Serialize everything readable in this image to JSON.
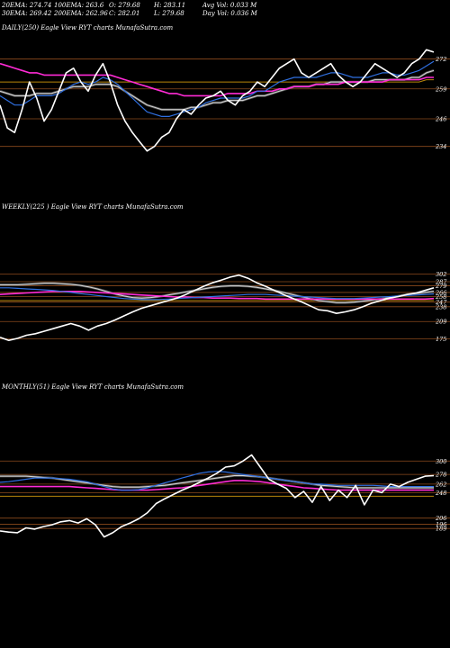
{
  "header": {
    "row1": [
      "20EMA: 274.74",
      "100EMA: 263.6",
      "O: 279.68",
      "H: 283.11",
      "Avg Vol: 0.033 M"
    ],
    "row2": [
      "30EMA: 269.42",
      "200EMA: 262.96",
      "C: 282.01",
      "L: 279.68",
      "Day Vol: 0.036 M"
    ]
  },
  "colors": {
    "background": "#000000",
    "price": "#ffffff",
    "ema_fast": "#2f6fe0",
    "ema_slow": "#ff2bd6",
    "ema_mid": "#d8d8d8",
    "ema_long": "#b8860b",
    "level_line": "#8b4a1c"
  },
  "chart_data": [
    {
      "type": "line",
      "title": "DAILY(250) Eagle   View  RYT charts MunafaSutra.com",
      "ylim": [
        228,
        282
      ],
      "yticks": [
        272,
        259,
        246,
        234
      ],
      "x": [
        0,
        1,
        2,
        3,
        4,
        5,
        6,
        7,
        8,
        9,
        10,
        11,
        12,
        13,
        14,
        15,
        16,
        17,
        18,
        19,
        20,
        21,
        22,
        23,
        24,
        25,
        26,
        27,
        28,
        29,
        30,
        31,
        32,
        33,
        34,
        35,
        36,
        37,
        38,
        39,
        40,
        41,
        42,
        43,
        44,
        45,
        46,
        47,
        48,
        49,
        50,
        51,
        52,
        53,
        54,
        55,
        56,
        57,
        58,
        59
      ],
      "series": [
        {
          "values": [
            252,
            242,
            240,
            250,
            262,
            255,
            245,
            250,
            258,
            266,
            268,
            262,
            258,
            265,
            270,
            262,
            252,
            245,
            240,
            236,
            232,
            234,
            238,
            240,
            246,
            250,
            248,
            252,
            255,
            256,
            258,
            254,
            252,
            256,
            258,
            262,
            260,
            264,
            268,
            270,
            272,
            266,
            264,
            266,
            268,
            270,
            265,
            262,
            260,
            262,
            266,
            270,
            268,
            266,
            264,
            266,
            270,
            272,
            276,
            275
          ]
        },
        {
          "values": [
            256,
            254,
            252,
            252,
            254,
            256,
            256,
            256,
            257,
            259,
            261,
            262,
            261,
            262,
            264,
            263,
            261,
            258,
            255,
            252,
            249,
            248,
            247,
            247,
            248,
            249,
            250,
            251,
            253,
            254,
            255,
            255,
            255,
            255,
            256,
            258,
            258,
            260,
            262,
            263,
            264,
            264,
            264,
            264,
            265,
            266,
            266,
            265,
            264,
            264,
            264,
            265,
            266,
            266,
            265,
            265,
            266,
            267,
            269,
            271
          ]
        },
        {
          "values": [
            270,
            269,
            268,
            267,
            266,
            266,
            265,
            265,
            265,
            265,
            265,
            265,
            265,
            265,
            265,
            265,
            264,
            263,
            262,
            261,
            260,
            259,
            258,
            257,
            257,
            256,
            256,
            256,
            256,
            256,
            256,
            257,
            257,
            257,
            257,
            258,
            258,
            258,
            259,
            259,
            260,
            260,
            260,
            261,
            261,
            261,
            261,
            262,
            262,
            262,
            262,
            262,
            262,
            263,
            263,
            263,
            263,
            263,
            264,
            264
          ]
        },
        {
          "values": [
            262,
            262,
            262,
            262,
            262,
            262,
            262,
            262,
            262,
            262,
            262,
            262,
            262,
            262,
            262,
            262,
            262,
            262,
            262,
            262,
            262,
            262,
            262,
            262,
            262,
            262,
            262,
            262,
            262,
            262,
            262,
            262,
            262,
            262,
            262,
            262,
            262,
            262,
            262,
            262,
            262,
            262,
            262,
            262,
            262,
            262,
            262,
            262,
            262,
            262,
            262,
            262,
            262,
            262,
            262,
            262,
            262,
            262,
            263,
            263
          ]
        },
        {
          "values": [
            258,
            257,
            256,
            256,
            256,
            257,
            257,
            257,
            258,
            259,
            260,
            260,
            260,
            261,
            261,
            261,
            260,
            258,
            256,
            254,
            252,
            251,
            250,
            250,
            250,
            250,
            251,
            251,
            252,
            253,
            253,
            254,
            254,
            254,
            255,
            256,
            256,
            257,
            258,
            259,
            260,
            260,
            260,
            261,
            261,
            262,
            262,
            262,
            262,
            262,
            262,
            263,
            263,
            263,
            263,
            263,
            264,
            264,
            266,
            267
          ]
        }
      ],
      "levels": [
        272,
        259,
        246,
        234
      ]
    },
    {
      "type": "line",
      "title": "WEEKLY(225                 ) Eagle   View  RYT charts MunafaSutra.com",
      "ylim": [
        160,
        310
      ],
      "yticks": [
        302,
        287,
        279,
        266,
        258,
        247,
        238,
        209,
        175
      ],
      "x": [
        0,
        1,
        2,
        3,
        4,
        5,
        6,
        7,
        8,
        9,
        10,
        11,
        12,
        13,
        14,
        15,
        16,
        17,
        18,
        19,
        20,
        21,
        22,
        23,
        24,
        25,
        26,
        27,
        28,
        29,
        30,
        31,
        32,
        33,
        34,
        35,
        36,
        37,
        38,
        39,
        40,
        41,
        42,
        43,
        44,
        45,
        46,
        47,
        48,
        49
      ],
      "series": [
        {
          "values": [
            178,
            172,
            176,
            182,
            185,
            190,
            195,
            200,
            205,
            200,
            192,
            200,
            205,
            212,
            220,
            228,
            235,
            240,
            245,
            250,
            255,
            262,
            270,
            278,
            285,
            290,
            296,
            300,
            294,
            285,
            278,
            270,
            262,
            255,
            248,
            240,
            232,
            230,
            225,
            228,
            232,
            238,
            245,
            250,
            255,
            258,
            262,
            265,
            270,
            275
          ]
        },
        {
          "values": [
            275,
            275,
            274,
            273,
            272,
            271,
            270,
            268,
            266,
            264,
            262,
            260,
            258,
            256,
            254,
            253,
            252,
            252,
            252,
            253,
            254,
            255,
            256,
            257,
            258,
            259,
            260,
            261,
            262,
            262,
            262,
            261,
            260,
            259,
            258,
            257,
            256,
            255,
            254,
            254,
            254,
            255,
            256,
            257,
            258,
            259,
            260,
            261,
            262,
            263
          ]
        },
        {
          "values": [
            262,
            263,
            264,
            265,
            266,
            267,
            268,
            268,
            268,
            268,
            267,
            266,
            265,
            264,
            263,
            262,
            261,
            260,
            259,
            258,
            257,
            257,
            256,
            256,
            255,
            255,
            255,
            254,
            254,
            254,
            253,
            253,
            253,
            253,
            253,
            253,
            253,
            253,
            253,
            253,
            253,
            253,
            253,
            253,
            253,
            253,
            253,
            253,
            253,
            254
          ]
        },
        {
          "values": [
            250,
            250,
            250,
            250,
            250,
            250,
            250,
            250,
            250,
            250,
            250,
            250,
            250,
            250,
            250,
            250,
            250,
            250,
            250,
            250,
            250,
            250,
            250,
            250,
            250,
            250,
            250,
            250,
            250,
            250,
            250,
            250,
            250,
            250,
            250,
            250,
            250,
            250,
            250,
            250,
            250,
            250,
            250,
            250,
            250,
            250,
            250,
            250,
            250,
            250
          ]
        },
        {
          "values": [
            281,
            281,
            281,
            282,
            283,
            284,
            284,
            283,
            282,
            280,
            277,
            273,
            268,
            263,
            259,
            256,
            255,
            256,
            258,
            261,
            264,
            267,
            270,
            273,
            276,
            278,
            279,
            279,
            278,
            276,
            273,
            270,
            266,
            262,
            258,
            254,
            250,
            248,
            246,
            246,
            247,
            249,
            251,
            253,
            256,
            259,
            262,
            264,
            266,
            268
          ]
        }
      ],
      "levels": [
        302,
        287,
        279,
        266,
        258,
        247,
        238,
        209,
        175
      ]
    },
    {
      "type": "line",
      "title": "MONTHLY(51) Eagle   View  RYT charts MunafaSutra.com",
      "ylim": [
        170,
        330
      ],
      "yticks": [
        300,
        278,
        262,
        248,
        206,
        196,
        189
      ],
      "x": [
        0,
        1,
        2,
        3,
        4,
        5,
        6,
        7,
        8,
        9,
        10,
        11,
        12,
        13,
        14,
        15,
        16,
        17,
        18,
        19,
        20,
        21,
        22,
        23,
        24,
        25,
        26,
        27,
        28,
        29,
        30,
        31,
        32,
        33,
        34,
        35,
        36,
        37,
        38,
        39,
        40,
        41,
        42,
        43,
        44,
        45,
        46,
        47,
        48,
        49,
        50
      ],
      "series": [
        {
          "values": [
            185,
            183,
            182,
            190,
            188,
            192,
            195,
            200,
            202,
            198,
            205,
            195,
            175,
            182,
            192,
            198,
            205,
            215,
            230,
            238,
            245,
            252,
            258,
            265,
            272,
            280,
            290,
            292,
            300,
            310,
            290,
            270,
            262,
            255,
            240,
            250,
            232,
            258,
            235,
            252,
            240,
            260,
            228,
            252,
            248,
            262,
            258,
            265,
            270,
            275,
            276
          ]
        },
        {
          "values": [
            265,
            266,
            268,
            270,
            272,
            272,
            272,
            271,
            270,
            268,
            266,
            262,
            258,
            254,
            252,
            252,
            253,
            256,
            260,
            264,
            268,
            272,
            276,
            280,
            282,
            283,
            282,
            280,
            278,
            276,
            274,
            272,
            270,
            268,
            266,
            264,
            262,
            262,
            261,
            260,
            260,
            260,
            260,
            260,
            259,
            258,
            258,
            258,
            258,
            258,
            258
          ]
        },
        {
          "values": [
            258,
            258,
            258,
            258,
            258,
            258,
            258,
            258,
            258,
            257,
            256,
            255,
            254,
            253,
            252,
            252,
            252,
            252,
            253,
            254,
            255,
            256,
            258,
            260,
            262,
            264,
            266,
            268,
            268,
            267,
            266,
            264,
            262,
            260,
            258,
            256,
            255,
            254,
            253,
            252,
            252,
            252,
            252,
            252,
            252,
            252,
            252,
            252,
            252,
            252,
            252
          ]
        },
        {
          "values": [
            242,
            242,
            242,
            242,
            242,
            242,
            242,
            242,
            242,
            242,
            242,
            242,
            242,
            242,
            242,
            242,
            242,
            242,
            242,
            242,
            242,
            242,
            242,
            242,
            242,
            242,
            242,
            242,
            242,
            242,
            242,
            242,
            242,
            242,
            242,
            242,
            242,
            242,
            242,
            242,
            242,
            242,
            242,
            242,
            242,
            242,
            242,
            242,
            242,
            242,
            242
          ]
        },
        {
          "values": [
            275,
            275,
            275,
            275,
            274,
            273,
            272,
            270,
            268,
            266,
            264,
            262,
            260,
            258,
            257,
            257,
            257,
            258,
            259,
            260,
            262,
            264,
            266,
            268,
            270,
            272,
            274,
            276,
            276,
            275,
            274,
            272,
            270,
            268,
            266,
            264,
            262,
            260,
            259,
            258,
            257,
            256,
            256,
            256,
            256,
            256,
            256,
            256,
            256,
            256,
            256
          ]
        }
      ],
      "levels": [
        300,
        278,
        262,
        248,
        206,
        196,
        189
      ]
    }
  ]
}
